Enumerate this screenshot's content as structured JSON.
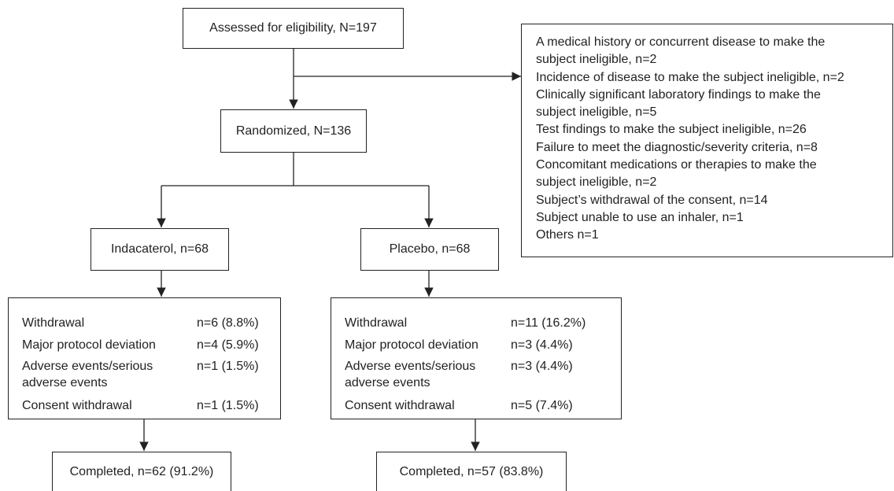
{
  "assessed": "Assessed for eligibility, N=197",
  "randomized": "Randomized, N=136",
  "exclusion": {
    "lines": [
      "A medical history or concurrent disease to make the",
      "subject ineligible, n=2",
      "Incidence of disease to make the subject ineligible, n=2",
      "Clinically significant laboratory findings to make the",
      "subject ineligible, n=5",
      "Test findings to make the subject ineligible, n=26",
      "Failure to meet the diagnostic/severity criteria, n=8",
      "Concomitant medications or therapies to make the",
      "subject ineligible, n=2",
      "Subject’s withdrawal of the consent, n=14",
      "Subject unable to use an inhaler, n=1",
      "Others n=1"
    ]
  },
  "arms": [
    {
      "label": "Indacaterol, n=68",
      "discontinuations": [
        {
          "reason": "Withdrawal",
          "count": "n=6 (8.8%)"
        },
        {
          "reason": "Major protocol deviation",
          "count": "n=4 (5.9%)"
        },
        {
          "reason": "Adverse events/serious adverse events",
          "count": "n=1 (1.5%)"
        },
        {
          "reason": "Consent withdrawal",
          "count": "n=1 (1.5%)"
        }
      ],
      "completed": "Completed, n=62 (91.2%)"
    },
    {
      "label": "Placebo, n=68",
      "discontinuations": [
        {
          "reason": "Withdrawal",
          "count": "n=11 (16.2%)"
        },
        {
          "reason": "Major protocol deviation",
          "count": "n=3 (4.4%)"
        },
        {
          "reason": "Adverse events/serious adverse events",
          "count": "n=3 (4.4%)"
        },
        {
          "reason": "Consent withdrawal",
          "count": "n=5 (7.4%)"
        }
      ],
      "completed": "Completed, n=57 (83.8%)"
    }
  ]
}
